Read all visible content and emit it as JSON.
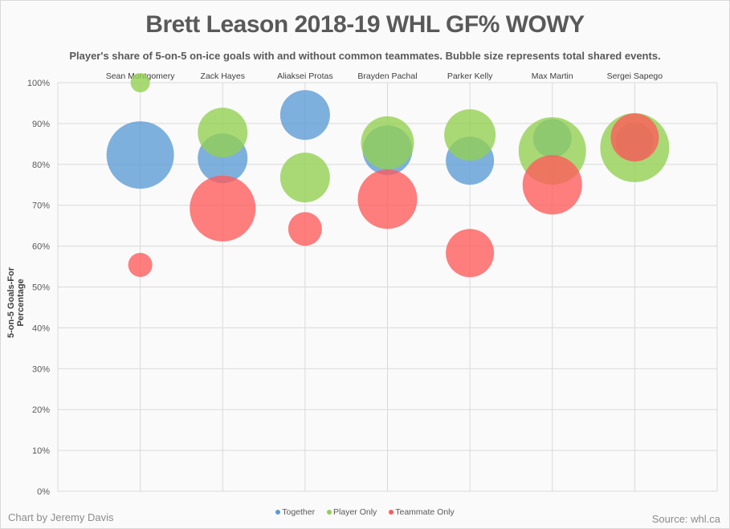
{
  "chart_data": {
    "type": "bubble",
    "title": "Brett Leason 2018-19 WHL GF% WOWY",
    "subtitle": "Player's share of 5-on-5 on-ice goals with and without common teammates. Bubble size represents total shared events.",
    "xlabel": "",
    "ylabel": "5-on-5 Goals-For Percentage",
    "ylim": [
      0,
      100
    ],
    "yticks": [
      "0%",
      "10%",
      "20%",
      "30%",
      "40%",
      "50%",
      "60%",
      "70%",
      "80%",
      "90%",
      "100%"
    ],
    "categories": [
      "Sean Montgomery",
      "Zack Hayes",
      "Aliaksei Protas",
      "Brayden Pachal",
      "Parker Kelly",
      "Max Martin",
      "Sergei Sapego"
    ],
    "grid": true,
    "legend_position": "bottom",
    "series": [
      {
        "name": "Together",
        "color": "#5b9bd5",
        "values": [
          82.3,
          81.5,
          92.1,
          83.5,
          80.9,
          86.4,
          85.5
        ],
        "sizes": [
          42,
          31,
          31,
          31,
          30,
          24,
          24
        ]
      },
      {
        "name": "Player Only",
        "color": "#92d050",
        "values": [
          100,
          87.8,
          76.8,
          85.3,
          87.2,
          83.3,
          84.1
        ],
        "sizes": [
          12,
          31,
          31,
          33,
          32,
          42,
          43
        ]
      },
      {
        "name": "Teammate Only",
        "color": "#ff5a5a",
        "values": [
          55.4,
          69.2,
          64.2,
          71.5,
          58.3,
          75.0,
          86.6
        ],
        "sizes": [
          15,
          41,
          21,
          37,
          30,
          37,
          30
        ]
      }
    ]
  },
  "footer": {
    "credit": "Chart by Jeremy Davis",
    "source": "Source: whl.ca"
  }
}
